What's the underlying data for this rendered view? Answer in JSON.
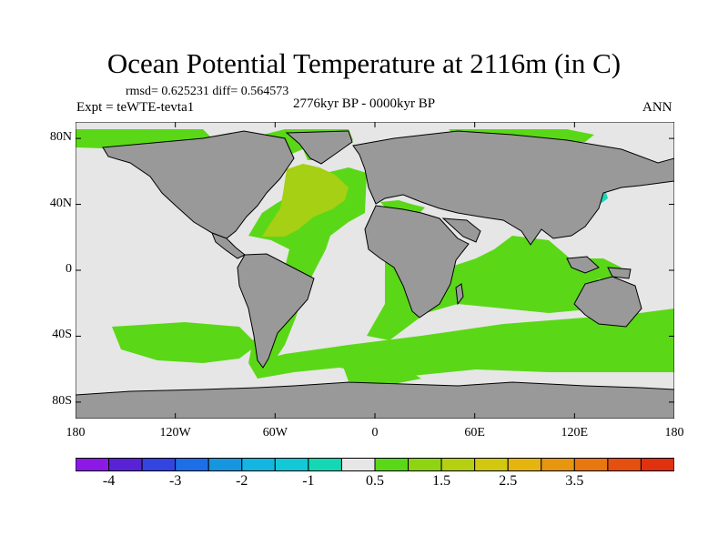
{
  "title": "Ocean Potential Temperature at 2116m (in C)",
  "stats_line": "rmsd= 0.625231 diff= 0.564573",
  "experiment": "Expt = teWTE-tevta1",
  "period": "2776kyr BP - 0000kyr BP",
  "season": "ANN",
  "map": {
    "projection": "cylindrical equidistant",
    "lon_range": [
      -180,
      180
    ],
    "lat_range": [
      -90,
      90
    ],
    "y_ticks": [
      {
        "lat": 80,
        "label": "80N"
      },
      {
        "lat": 40,
        "label": "40N"
      },
      {
        "lat": 0,
        "label": "0"
      },
      {
        "lat": -40,
        "label": "40S"
      },
      {
        "lat": -80,
        "label": "80S"
      }
    ],
    "x_ticks": [
      {
        "lon": -180,
        "label": "180"
      },
      {
        "lon": -120,
        "label": "120W"
      },
      {
        "lon": -60,
        "label": "60W"
      },
      {
        "lon": 0,
        "label": "0"
      },
      {
        "lon": 60,
        "label": "60E"
      },
      {
        "lon": 120,
        "label": "120E"
      },
      {
        "lon": 180,
        "label": "180"
      }
    ],
    "land_color": "#999999",
    "ocean_no_change_color": "#e6e6e6",
    "dominant_anomaly_color": "#5ad817",
    "north_atlantic_color": "#a5d013",
    "east_asia_patch_color": "#1cd6b8"
  },
  "colorbar": {
    "colors": [
      "#8c19e6",
      "#5a22d6",
      "#3344e0",
      "#1e6ee8",
      "#1796e0",
      "#12b6e0",
      "#12c8d6",
      "#14d8b4",
      "#e6e6e6",
      "#5ad817",
      "#8ed411",
      "#b4d010",
      "#d2c80f",
      "#e6b40f",
      "#e6960f",
      "#e6780f",
      "#e6500f",
      "#e0320f"
    ],
    "labels": [
      {
        "boundary": 1,
        "text": "-4"
      },
      {
        "boundary": 3,
        "text": "-3"
      },
      {
        "boundary": 5,
        "text": "-2"
      },
      {
        "boundary": 7,
        "text": "-1"
      },
      {
        "boundary": 9,
        "text": "0.5"
      },
      {
        "boundary": 11,
        "text": "1.5"
      },
      {
        "boundary": 13,
        "text": "2.5"
      },
      {
        "boundary": 15,
        "text": "3.5"
      }
    ]
  }
}
